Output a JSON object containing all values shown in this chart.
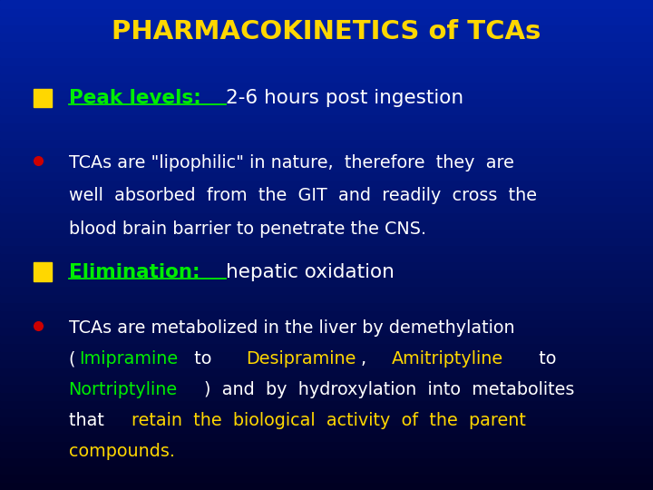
{
  "title": "PHARMACOKINETICS of TCAs",
  "title_color": "#FFD700",
  "bg_color_top": "#000022",
  "bg_color_bottom": "#0033AA",
  "bullet_square_color": "#FFD700",
  "bullet_dot_color": "#CC0000",
  "section0_parts": [
    {
      "text": "Peak levels: ",
      "color": "#00EE00",
      "bold": true,
      "underline": true
    },
    {
      "text": "2-6 hours post ingestion",
      "color": "#FFFFFF",
      "bold": false,
      "underline": false
    }
  ],
  "section1_lines": [
    [
      {
        "text": "TCAs are \"lipophilic\" in nature,  therefore  they  are",
        "color": "#FFFFFF"
      }
    ],
    [
      {
        "text": "well  absorbed  from  the  GIT  and  readily  cross  the",
        "color": "#FFFFFF"
      }
    ],
    [
      {
        "text": "blood brain barrier to penetrate the CNS.",
        "color": "#FFFFFF"
      }
    ]
  ],
  "section2_parts": [
    {
      "text": "Elimination: ",
      "color": "#00EE00",
      "bold": true,
      "underline": true
    },
    {
      "text": "hepatic oxidation",
      "color": "#FFFFFF",
      "bold": false,
      "underline": false
    }
  ],
  "section3_lines": [
    [
      {
        "text": "TCAs are metabolized in the liver by demethylation",
        "color": "#FFFFFF"
      }
    ],
    [
      {
        "text": "(",
        "color": "#FFFFFF"
      },
      {
        "text": "Imipramine",
        "color": "#00EE00"
      },
      {
        "text": "  to  ",
        "color": "#FFFFFF"
      },
      {
        "text": "Desipramine",
        "color": "#FFD700"
      },
      {
        "text": ",  ",
        "color": "#FFFFFF"
      },
      {
        "text": "Amitriptyline",
        "color": "#FFD700"
      },
      {
        "text": "  to",
        "color": "#FFFFFF"
      }
    ],
    [
      {
        "text": "Nortriptyline",
        "color": "#00EE00"
      },
      {
        "text": ")  and  by  hydroxylation  into  metabolites",
        "color": "#FFFFFF"
      }
    ],
    [
      {
        "text": "that  ",
        "color": "#FFFFFF"
      },
      {
        "text": "retain  the  biological  activity  of  the  parent",
        "color": "#FFD700"
      }
    ],
    [
      {
        "text": "compounds.",
        "color": "#FFD700"
      }
    ]
  ]
}
